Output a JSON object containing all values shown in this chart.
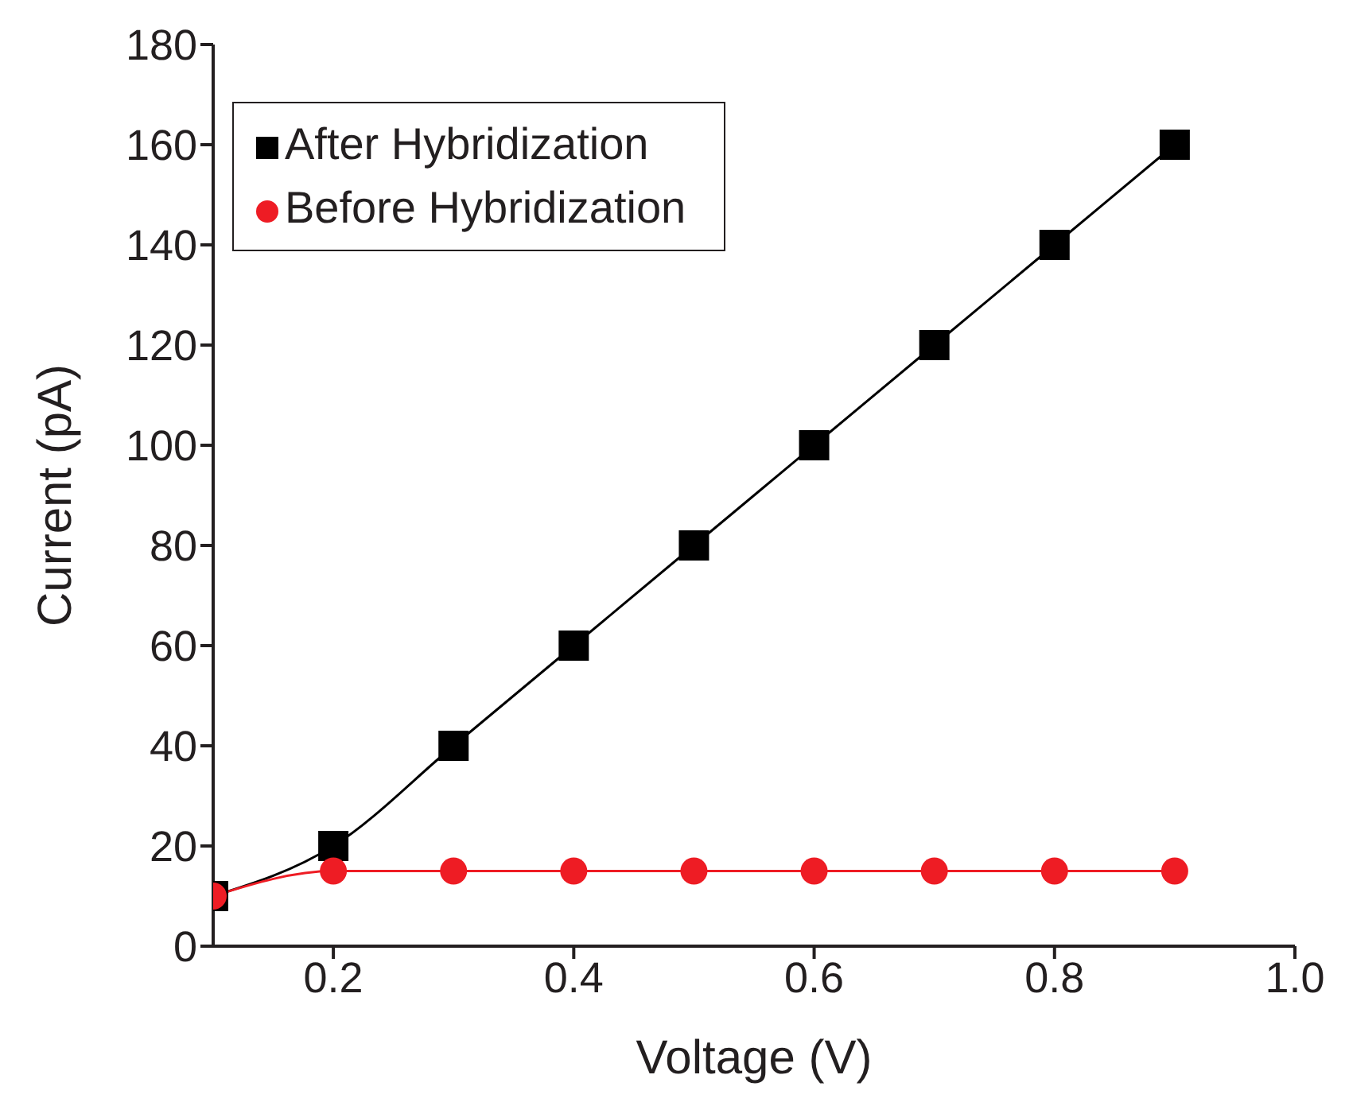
{
  "chart_data": {
    "type": "line",
    "xlabel": "Voltage (V)",
    "ylabel": "Current (pA)",
    "x": [
      0.1,
      0.2,
      0.3,
      0.4,
      0.5,
      0.6,
      0.7,
      0.8,
      0.9
    ],
    "series": [
      {
        "name": "After Hybridization",
        "color": "#000000",
        "marker": "square",
        "values": [
          10,
          20,
          40,
          60,
          80,
          100,
          120,
          140,
          160
        ]
      },
      {
        "name": "Before Hybridization",
        "color": "#ee1c24",
        "marker": "circle",
        "values": [
          10,
          15,
          15,
          15,
          15,
          15,
          15,
          15,
          15
        ]
      }
    ],
    "xlim": [
      0.1,
      1.0
    ],
    "xticks": [
      0.2,
      0.4,
      0.6,
      0.8,
      {
        "value": 1.0,
        "label": "1.0"
      }
    ],
    "ylim": [
      0,
      180
    ],
    "yticks": [
      0,
      20,
      40,
      60,
      80,
      100,
      120,
      140,
      160,
      180
    ],
    "grid": false,
    "legend": "top left",
    "line_style": "solid"
  }
}
